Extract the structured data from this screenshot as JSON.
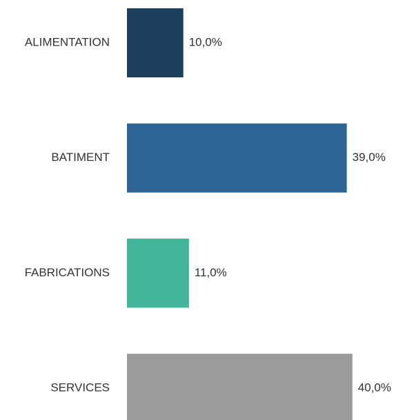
{
  "chart_data": {
    "type": "bar",
    "orientation": "horizontal",
    "categories": [
      "ALIMENTATION",
      "BATIMENT",
      "FABRICATIONS",
      "SERVICES"
    ],
    "values": [
      10,
      39,
      11,
      40
    ],
    "value_labels": [
      "10,0%",
      "39,0%",
      "11,0%",
      "40,0%"
    ],
    "colors": [
      "#1f3f5e",
      "#2e6594",
      "#40b59a",
      "#9a9b9d"
    ]
  }
}
